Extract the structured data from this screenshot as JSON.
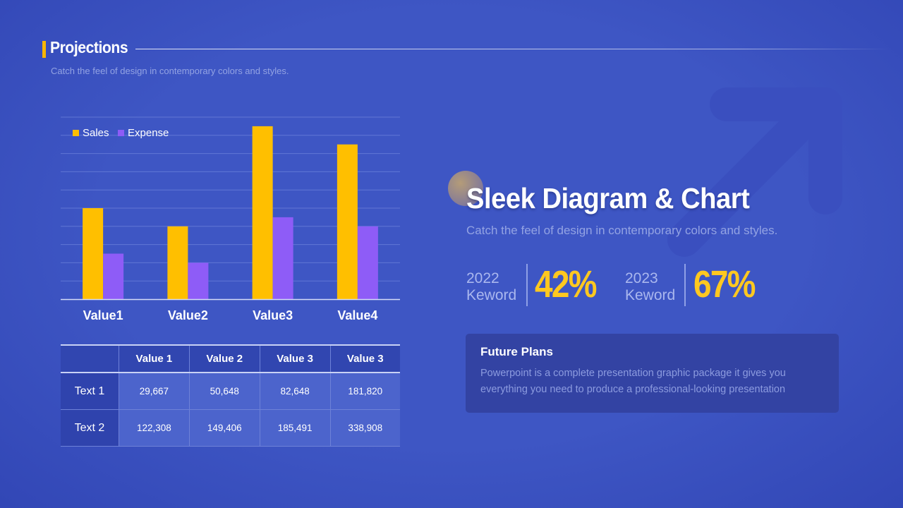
{
  "header": {
    "title": "Projections",
    "subtitle": "Catch the feel of design in contemporary colors and styles."
  },
  "chart_data": {
    "type": "bar",
    "categories": [
      "Value1",
      "Value2",
      "Value3",
      "Value4"
    ],
    "series": [
      {
        "name": "Sales",
        "values": [
          5,
          4,
          9.5,
          8.5
        ],
        "color": "#ffbf00"
      },
      {
        "name": "Expense",
        "values": [
          2.5,
          2,
          4.5,
          4
        ],
        "color": "#8e5cf7"
      }
    ],
    "ylim": [
      0,
      10
    ],
    "grid": true,
    "legend": "top-left"
  },
  "table": {
    "headers": [
      "",
      "Value 1",
      "Value 2",
      "Value 3",
      "Value 3"
    ],
    "rows": [
      [
        "Text 1",
        "29,667",
        "50,648",
        "82,648",
        "181,820"
      ],
      [
        "Text 2",
        "122,308",
        "149,406",
        "185,491",
        "338,908"
      ]
    ]
  },
  "hero": {
    "title": "Sleek Diagram & Chart",
    "subtitle": "Catch the feel of design in contemporary colors and styles."
  },
  "stats": [
    {
      "year": "2022",
      "label": "Keword",
      "value": "42%"
    },
    {
      "year": "2023",
      "label": "Keword",
      "value": "67%"
    }
  ],
  "plans": {
    "title": "Future Plans",
    "text": "Powerpoint is a complete presentation graphic package it gives you everything you need to produce a professional-looking presentation"
  },
  "colors": {
    "background": "#3e56c4",
    "accent": "#ffc820",
    "sales": "#ffbf00",
    "expense": "#8e5cf7"
  }
}
